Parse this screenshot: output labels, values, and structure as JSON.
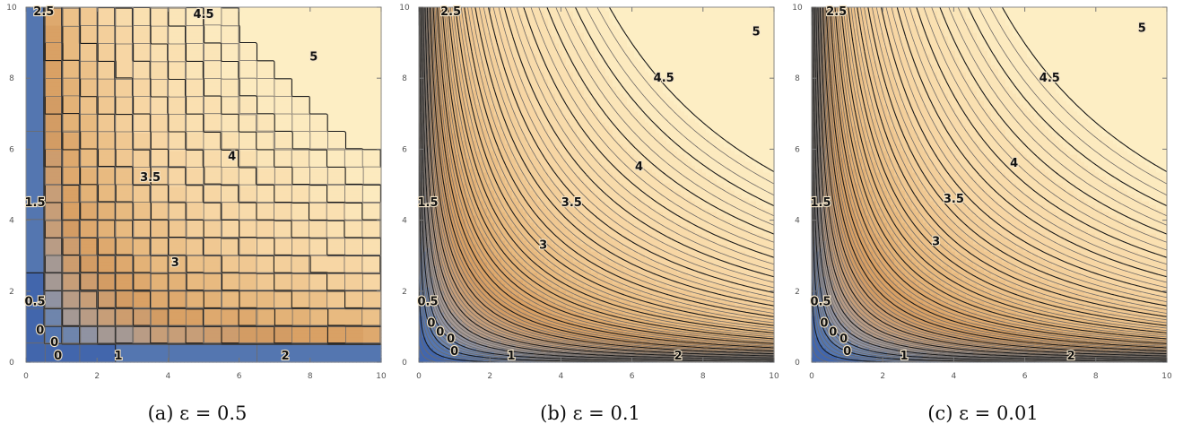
{
  "chart_data": [
    {
      "type": "contour",
      "panel_label": "(a)",
      "caption": "(a) ε = 0.5",
      "epsilon_label": "ε = 0.5",
      "epsilon": 0.5,
      "x_ticks": [
        "0",
        "2",
        "4",
        "6",
        "8",
        "10"
      ],
      "y_ticks": [
        "0",
        "2",
        "4",
        "6",
        "8",
        "10"
      ],
      "xlim": [
        0,
        10
      ],
      "ylim": [
        0,
        10
      ],
      "contour_labels": [
        {
          "text": "0",
          "x": 0.4,
          "y": 0.8
        },
        {
          "text": "0",
          "x": 0.8,
          "y": 0.45
        },
        {
          "text": "0",
          "x": 0.9,
          "y": 0.05
        },
        {
          "text": "0.5",
          "x": 0.2,
          "y": 1.6
        },
        {
          "text": "1",
          "x": 2.6,
          "y": 0.0
        },
        {
          "text": "1.5",
          "x": 0.15,
          "y": 4.4
        },
        {
          "text": "2",
          "x": 7.3,
          "y": 0.0
        },
        {
          "text": "2.5",
          "x": 0.5,
          "y": 9.95
        },
        {
          "text": "3",
          "x": 4.2,
          "y": 2.7
        },
        {
          "text": "3.5",
          "x": 3.5,
          "y": 5.1
        },
        {
          "text": "4",
          "x": 5.8,
          "y": 5.7
        },
        {
          "text": "4.5",
          "x": 5.0,
          "y": 9.7
        },
        {
          "text": "5",
          "x": 8.1,
          "y": 8.5
        }
      ]
    },
    {
      "type": "contour",
      "panel_label": "(b)",
      "caption": "(b) ε = 0.1",
      "epsilon_label": "ε = 0.1",
      "epsilon": 0.1,
      "x_ticks": [
        "0",
        "2",
        "4",
        "6",
        "8",
        "10"
      ],
      "y_ticks": [
        "0",
        "2",
        "4",
        "6",
        "8",
        "10"
      ],
      "xlim": [
        0,
        10
      ],
      "ylim": [
        0,
        10
      ],
      "contour_labels": [
        {
          "text": "0",
          "x": 0.35,
          "y": 1.0
        },
        {
          "text": "0",
          "x": 0.6,
          "y": 0.75
        },
        {
          "text": "0",
          "x": 0.9,
          "y": 0.55
        },
        {
          "text": "0",
          "x": 1.0,
          "y": 0.2
        },
        {
          "text": "0.5",
          "x": 0.2,
          "y": 1.6
        },
        {
          "text": "1",
          "x": 2.6,
          "y": 0.0
        },
        {
          "text": "1.5",
          "x": 0.15,
          "y": 4.4
        },
        {
          "text": "2",
          "x": 7.3,
          "y": 0.0
        },
        {
          "text": "2.5",
          "x": 0.9,
          "y": 9.95
        },
        {
          "text": "3",
          "x": 3.5,
          "y": 3.2
        },
        {
          "text": "3.5",
          "x": 4.3,
          "y": 4.4
        },
        {
          "text": "4",
          "x": 6.2,
          "y": 5.4
        },
        {
          "text": "4.5",
          "x": 6.9,
          "y": 7.9
        },
        {
          "text": "5",
          "x": 9.5,
          "y": 9.2
        }
      ]
    },
    {
      "type": "contour",
      "panel_label": "(c)",
      "caption": "(c) ε = 0.01",
      "epsilon_label": "ε = 0.01",
      "epsilon": 0.01,
      "x_ticks": [
        "0",
        "2",
        "4",
        "6",
        "8",
        "10"
      ],
      "y_ticks": [
        "0",
        "2",
        "4",
        "6",
        "8",
        "10"
      ],
      "xlim": [
        0,
        10
      ],
      "ylim": [
        0,
        10
      ],
      "contour_labels": [
        {
          "text": "0",
          "x": 0.35,
          "y": 1.0
        },
        {
          "text": "0",
          "x": 0.6,
          "y": 0.75
        },
        {
          "text": "0",
          "x": 0.9,
          "y": 0.55
        },
        {
          "text": "0",
          "x": 1.0,
          "y": 0.2
        },
        {
          "text": "0.5",
          "x": 0.2,
          "y": 1.6
        },
        {
          "text": "1",
          "x": 2.6,
          "y": 0.0
        },
        {
          "text": "1.5",
          "x": 0.15,
          "y": 4.4
        },
        {
          "text": "2",
          "x": 7.3,
          "y": 0.0
        },
        {
          "text": "2.5",
          "x": 0.7,
          "y": 9.95
        },
        {
          "text": "3",
          "x": 3.5,
          "y": 3.3
        },
        {
          "text": "3.5",
          "x": 4.0,
          "y": 4.5
        },
        {
          "text": "4",
          "x": 5.7,
          "y": 5.5
        },
        {
          "text": "4.5",
          "x": 6.7,
          "y": 7.9
        },
        {
          "text": "5",
          "x": 9.3,
          "y": 9.3
        }
      ]
    }
  ]
}
